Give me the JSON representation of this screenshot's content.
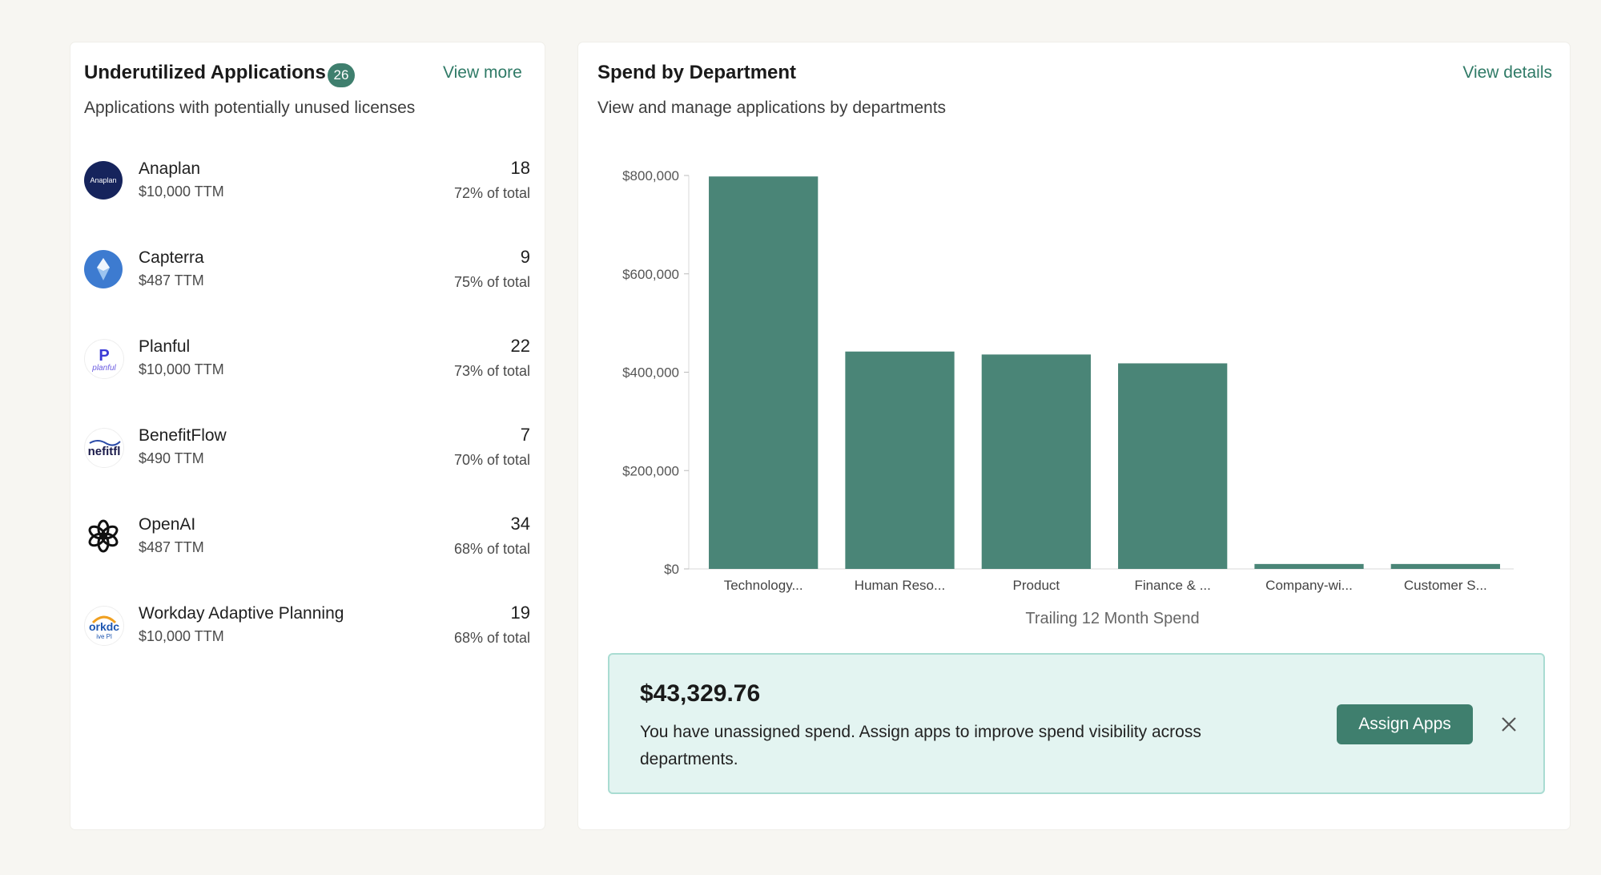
{
  "underutilized": {
    "title": "Underutilized Applications",
    "badge": "26",
    "view_more": "View more",
    "subtitle": "Applications with potentially unused licenses",
    "apps": [
      {
        "name": "Anaplan",
        "ttm": "$10,000 TTM",
        "count": "18",
        "pct": "72% of total",
        "icon": "anaplan-logo"
      },
      {
        "name": "Capterra",
        "ttm": "$487 TTM",
        "count": "9",
        "pct": "75% of total",
        "icon": "capterra-logo"
      },
      {
        "name": "Planful",
        "ttm": "$10,000 TTM",
        "count": "22",
        "pct": "73% of total",
        "icon": "planful-logo"
      },
      {
        "name": "BenefitFlow",
        "ttm": "$490 TTM",
        "count": "7",
        "pct": "70% of total",
        "icon": "benefitflow-logo"
      },
      {
        "name": "OpenAI",
        "ttm": "$487 TTM",
        "count": "34",
        "pct": "68% of total",
        "icon": "openai-logo"
      },
      {
        "name": "Workday Adaptive Planning",
        "ttm": "$10,000 TTM",
        "count": "19",
        "pct": "68% of total",
        "icon": "workday-logo"
      }
    ]
  },
  "spend": {
    "title": "Spend by Department",
    "view_details": "View details",
    "subtitle": "View and manage applications by departments"
  },
  "chart_data": {
    "type": "bar",
    "categories": [
      "Technology...",
      "Human Reso...",
      "Product",
      "Finance & ...",
      "Company-wi...",
      "Customer S..."
    ],
    "values": [
      798000,
      442000,
      436000,
      418000,
      10000,
      10000
    ],
    "xlabel": "Trailing 12 Month Spend",
    "ylabel": "",
    "ylim": [
      0,
      800000
    ],
    "yticks": [
      0,
      200000,
      400000,
      600000,
      800000
    ],
    "ytick_labels": [
      "$0",
      "$200,000",
      "$400,000",
      "$600,000",
      "$800,000"
    ],
    "bar_color": "#4a8577",
    "grid": false
  },
  "banner": {
    "amount": "$43,329.76",
    "message": "You have unassigned spend. Assign apps to improve spend visibility across departments.",
    "button": "Assign Apps"
  },
  "colors": {
    "accent": "#3f7f6e",
    "link": "#2f7a66",
    "banner_bg": "#e3f4f1",
    "banner_border": "#a9dcd2"
  }
}
